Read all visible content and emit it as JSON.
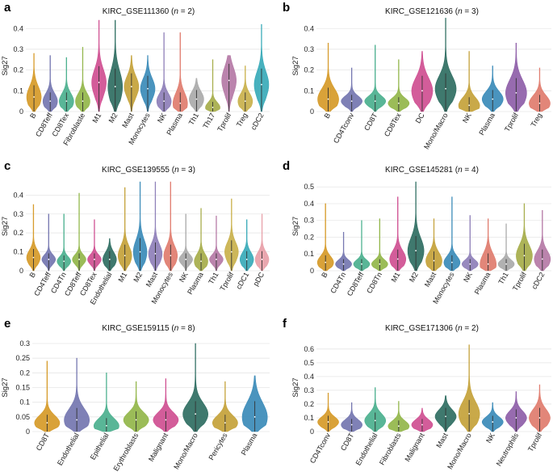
{
  "figure": {
    "colors": {
      "grid": "#e6e6e6",
      "median_line": "#333333"
    }
  },
  "chart_data": [
    {
      "panel": "a",
      "type": "violin",
      "title_prefix": "KIRC_GSE111360 (",
      "title_n": "n",
      "title_suffix": " = 2)",
      "ylabel": "Sig27",
      "ylim": [
        0,
        0.44
      ],
      "yticks": [
        "0",
        "0.1",
        "0.2",
        "0.3",
        "0.4"
      ],
      "grid": true,
      "categories": [
        "B",
        "CD8Teff",
        "CD8Tex",
        "Fibroblaste",
        "M1",
        "M2",
        "Mast",
        "Monocytes",
        "NK",
        "Plasma",
        "Th1",
        "Th17",
        "Tprolif",
        "Treg",
        "cDC2"
      ],
      "colors": [
        "#d69a28",
        "#7476b0",
        "#4bb08e",
        "#92b64a",
        "#cf4f91",
        "#2f6e62",
        "#c4a23a",
        "#3b8bb8",
        "#8e7fb8",
        "#e07c6e",
        "#aaaaaa",
        "#a6ad4a",
        "#b57aa6",
        "#c9b14c",
        "#38aab8"
      ],
      "max": [
        0.28,
        0.27,
        0.26,
        0.31,
        0.44,
        0.44,
        0.27,
        0.27,
        0.38,
        0.38,
        0.16,
        0.25,
        0.27,
        0.22,
        0.42
      ],
      "median": [
        0.07,
        0.05,
        0.05,
        0.05,
        0.14,
        0.12,
        0.12,
        0.11,
        0.05,
        0.04,
        0.06,
        0.02,
        0.15,
        0.05,
        0.13
      ],
      "q75": [
        0.11,
        0.08,
        0.08,
        0.08,
        0.19,
        0.18,
        0.16,
        0.15,
        0.08,
        0.08,
        0.09,
        0.04,
        0.2,
        0.08,
        0.18
      ]
    },
    {
      "panel": "b",
      "type": "violin",
      "title_prefix": "KIRC_GSE121636 (",
      "title_n": "n",
      "title_suffix": " = 3)",
      "ylabel": "Sig27",
      "ylim": [
        0,
        0.44
      ],
      "yticks": [
        "0",
        "0.1",
        "0.2",
        "0.3",
        "0.4"
      ],
      "grid": true,
      "categories": [
        "B",
        "CD4Tconv",
        "CD8T",
        "CD8Tex",
        "DC",
        "Mono/Macro",
        "NK",
        "Plasma",
        "Tprolif",
        "Treg"
      ],
      "colors": [
        "#d69a28",
        "#7476b0",
        "#4bb08e",
        "#92b64a",
        "#cf4f91",
        "#2f6e62",
        "#c4a23a",
        "#3b8bb8",
        "#8e5ea8",
        "#e07c6e"
      ],
      "max": [
        0.33,
        0.21,
        0.32,
        0.25,
        0.29,
        0.45,
        0.29,
        0.22,
        0.33,
        0.21
      ],
      "median": [
        0.06,
        0.05,
        0.05,
        0.04,
        0.1,
        0.11,
        0.03,
        0.06,
        0.09,
        0.04
      ],
      "q75": [
        0.1,
        0.07,
        0.07,
        0.06,
        0.15,
        0.16,
        0.06,
        0.09,
        0.14,
        0.07
      ]
    },
    {
      "panel": "c",
      "type": "violin",
      "title_prefix": "KIRC_GSE139555 (",
      "title_n": "n",
      "title_suffix": " = 3)",
      "ylabel": "Sig27",
      "ylim": [
        0,
        0.47
      ],
      "yticks": [
        "0",
        "0.1",
        "0.2",
        "0.3",
        "0.4"
      ],
      "grid": true,
      "categories": [
        "B",
        "CD4Teff",
        "CD4Tn",
        "CD8Teff",
        "CD8Tex",
        "Endothelial",
        "M1",
        "M2",
        "Mast",
        "Monocytes",
        "NK",
        "Plasma",
        "Th1",
        "Tprolif",
        "cDC1",
        "pDC"
      ],
      "colors": [
        "#d69a28",
        "#7476b0",
        "#4bb08e",
        "#92b64a",
        "#cf4f91",
        "#2f6e62",
        "#c4a23a",
        "#3b8bb8",
        "#8e7fb8",
        "#e07c6e",
        "#aaaaaa",
        "#a6ad4a",
        "#b57aa6",
        "#c9b14c",
        "#38aab8",
        "#e8a0a8"
      ],
      "max": [
        0.35,
        0.3,
        0.3,
        0.41,
        0.27,
        0.17,
        0.44,
        0.47,
        0.47,
        0.47,
        0.3,
        0.33,
        0.29,
        0.38,
        0.27,
        0.3
      ],
      "median": [
        0.07,
        0.06,
        0.05,
        0.06,
        0.06,
        0.06,
        0.08,
        0.1,
        0.09,
        0.08,
        0.06,
        0.05,
        0.06,
        0.1,
        0.06,
        0.06
      ],
      "q75": [
        0.1,
        0.08,
        0.07,
        0.08,
        0.08,
        0.09,
        0.12,
        0.15,
        0.13,
        0.12,
        0.08,
        0.08,
        0.08,
        0.14,
        0.09,
        0.09
      ]
    },
    {
      "panel": "d",
      "type": "violin",
      "title_prefix": "KIRC_GSE145281 (",
      "title_n": "n",
      "title_suffix": " = 4)",
      "ylabel": "Sig27",
      "ylim": [
        0,
        0.53
      ],
      "yticks": [
        "0",
        "0.1",
        "0.2",
        "0.3",
        "0.4",
        "0.5"
      ],
      "grid": true,
      "categories": [
        "B",
        "CD4Tn",
        "CD8Teff",
        "CD8Tn",
        "M1",
        "M2",
        "Mast",
        "Monocytes",
        "NK",
        "Plasma",
        "Th1",
        "Tprolif",
        "cDC2"
      ],
      "colors": [
        "#d69a28",
        "#7476b0",
        "#4bb08e",
        "#92b64a",
        "#cf4f91",
        "#2f6e62",
        "#c4a23a",
        "#3b8bb8",
        "#8e7fb8",
        "#e07c6e",
        "#aaaaaa",
        "#a6ad4a",
        "#b57aa6"
      ],
      "max": [
        0.4,
        0.23,
        0.3,
        0.31,
        0.44,
        0.53,
        0.31,
        0.44,
        0.33,
        0.31,
        0.28,
        0.4,
        0.36
      ],
      "median": [
        0.05,
        0.04,
        0.04,
        0.04,
        0.07,
        0.12,
        0.06,
        0.05,
        0.04,
        0.04,
        0.04,
        0.09,
        0.07
      ],
      "q75": [
        0.08,
        0.06,
        0.06,
        0.06,
        0.11,
        0.18,
        0.1,
        0.08,
        0.06,
        0.09,
        0.06,
        0.14,
        0.11
      ]
    },
    {
      "panel": "e",
      "type": "violin",
      "title_prefix": "KIRC_GSE159115 (",
      "title_n": "n",
      "title_suffix": " = 8)",
      "ylabel": "Sig27",
      "ylim": [
        0,
        0.3
      ],
      "yticks": [
        "0",
        "0.05",
        "0.1",
        "0.15",
        "0.2",
        "0.25",
        "0.3"
      ],
      "grid": true,
      "categories": [
        "CD8T",
        "Endothelial",
        "Epithelial",
        "Erythroblasts",
        "Malignant",
        "Mono/Macro",
        "Pericytes",
        "Plasma"
      ],
      "colors": [
        "#d69a28",
        "#7476b0",
        "#4bb08e",
        "#92b64a",
        "#cf4f91",
        "#2f6e62",
        "#c4a23a",
        "#3b8bb8"
      ],
      "max": [
        0.24,
        0.25,
        0.2,
        0.17,
        0.18,
        0.3,
        0.17,
        0.19
      ],
      "median": [
        0.03,
        0.04,
        0.02,
        0.04,
        0.04,
        0.06,
        0.03,
        0.05
      ],
      "q75": [
        0.05,
        0.07,
        0.04,
        0.06,
        0.06,
        0.09,
        0.05,
        0.09
      ]
    },
    {
      "panel": "f",
      "type": "violin",
      "title_prefix": "KIRC_GSE171306 (",
      "title_n": "n",
      "title_suffix": " = 2)",
      "ylabel": "Sig27",
      "ylim": [
        0,
        0.64
      ],
      "yticks": [
        "0",
        "0.1",
        "0.2",
        "0.3",
        "0.4",
        "0.5",
        "0.6"
      ],
      "grid": true,
      "categories": [
        "CD4Tconv",
        "CD8T",
        "Endothelial",
        "Fibroblasts",
        "Malignant",
        "Mast",
        "Mono/Macro",
        "NK",
        "Neutrophils",
        "Tprolif"
      ],
      "colors": [
        "#d69a28",
        "#7476b0",
        "#4bb08e",
        "#92b64a",
        "#cf4f91",
        "#2f6e62",
        "#c4a23a",
        "#3b8bb8",
        "#8e5ea8",
        "#e07c6e"
      ],
      "max": [
        0.28,
        0.21,
        0.32,
        0.22,
        0.17,
        0.26,
        0.63,
        0.21,
        0.29,
        0.34
      ],
      "median": [
        0.07,
        0.05,
        0.08,
        0.04,
        0.05,
        0.11,
        0.13,
        0.07,
        0.1,
        0.1
      ],
      "q75": [
        0.1,
        0.08,
        0.12,
        0.07,
        0.08,
        0.15,
        0.2,
        0.1,
        0.14,
        0.15
      ]
    }
  ]
}
